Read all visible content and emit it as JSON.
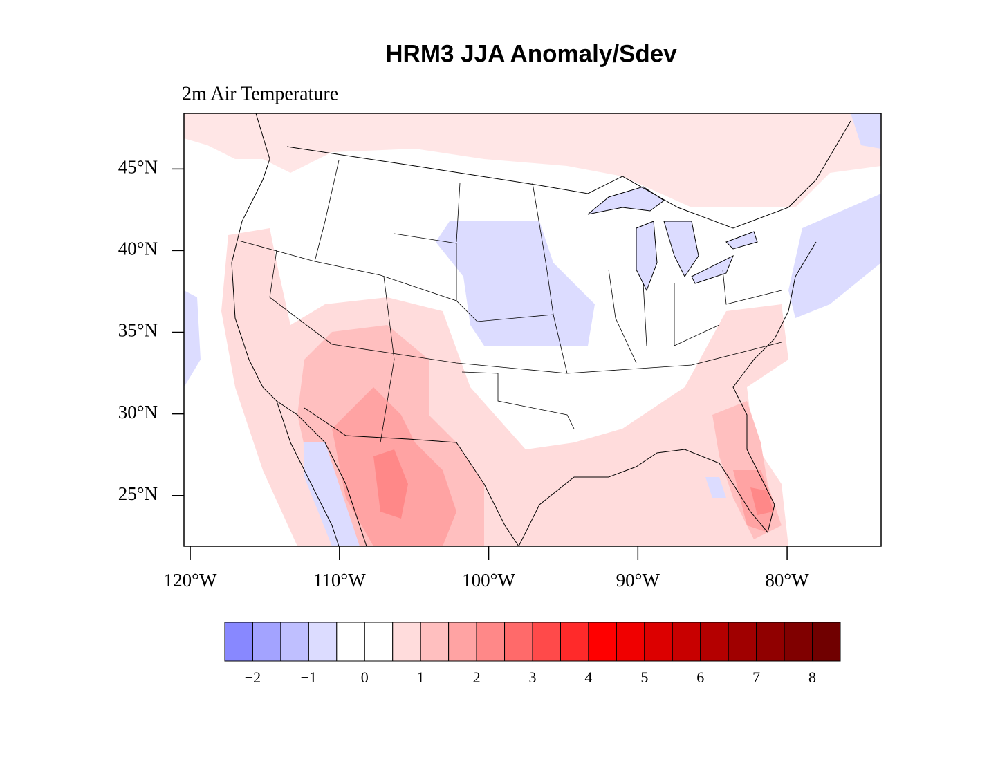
{
  "title": "HRM3 JJA Anomaly/Sdev",
  "subtitle": "2m Air Temperature",
  "map": {
    "type": "map",
    "xlim": [
      -120.42,
      -73.7
    ],
    "ylim": [
      21.9,
      48.4
    ],
    "xticks": [
      {
        "value": -120,
        "label": "120°W"
      },
      {
        "value": -110,
        "label": "110°W"
      },
      {
        "value": -100,
        "label": "100°W"
      },
      {
        "value": -90,
        "label": "90°W"
      },
      {
        "value": -80,
        "label": "80°W"
      }
    ],
    "yticks": [
      {
        "value": 45,
        "label": "45°N"
      },
      {
        "value": 40,
        "label": "40°N"
      },
      {
        "value": 35,
        "label": "35°N"
      },
      {
        "value": 30,
        "label": "30°N"
      },
      {
        "value": 25,
        "label": "25°N"
      }
    ]
  },
  "colorbar": {
    "lim": [
      -2.5,
      8.5
    ],
    "colors": [
      "#8888ff",
      "#a3a3ff",
      "#bfbfff",
      "#dcdcff",
      "#ffffff",
      "#ffffff",
      "#ffdcdc",
      "#ffbfbf",
      "#ffa3a3",
      "#ff8888",
      "#ff6a6a",
      "#ff4a4a",
      "#ff2a2a",
      "#ff0000",
      "#f00000",
      "#dc0000",
      "#c80000",
      "#b40000",
      "#a00000",
      "#900000",
      "#800000",
      "#700000"
    ],
    "ticks": [
      {
        "value": -2,
        "label": "−2"
      },
      {
        "value": -1,
        "label": "−1"
      },
      0,
      1,
      2,
      3,
      4,
      5,
      6,
      7,
      8
    ]
  }
}
